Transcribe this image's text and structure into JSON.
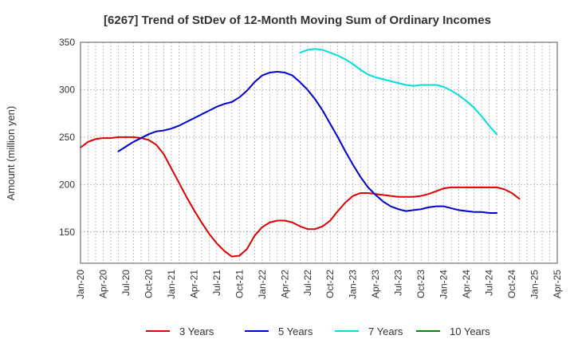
{
  "chart_data": {
    "type": "line",
    "title": "[6267]  Trend of StDev of 12-Month Moving Sum of Ordinary Incomes",
    "xlabel": "",
    "ylabel": "Amount (million yen)",
    "ylim": [
      117,
      350
    ],
    "yticks": [
      150,
      200,
      250,
      300,
      350
    ],
    "x_tick_labels": [
      "Jan-20",
      "Apr-20",
      "Jul-20",
      "Oct-20",
      "Jan-21",
      "Apr-21",
      "Jul-21",
      "Oct-21",
      "Jan-22",
      "Apr-22",
      "Jul-22",
      "Oct-22",
      "Jan-23",
      "Apr-23",
      "Jul-23",
      "Oct-23",
      "Jan-24",
      "Apr-24",
      "Jul-24",
      "Oct-24",
      "Jan-25",
      "Apr-25"
    ],
    "x_unit": "months since Jan-20",
    "series": [
      {
        "name": "3 Years",
        "color": "#dd0000",
        "x": [
          0,
          1,
          2,
          3,
          4,
          5,
          6,
          7,
          8,
          9,
          10,
          11,
          12,
          13,
          14,
          15,
          16,
          17,
          18,
          19,
          20,
          21,
          22,
          23,
          24,
          25,
          26,
          27,
          28,
          29,
          30,
          31,
          32,
          33,
          34,
          35,
          36,
          37,
          38,
          39,
          40,
          41,
          42,
          43,
          44,
          45,
          46,
          47,
          48,
          49,
          50,
          51,
          52,
          53,
          54,
          55,
          56,
          57,
          58,
          59,
          60
        ],
        "values": [
          239,
          245,
          248,
          249,
          249,
          250,
          250,
          250,
          249,
          247,
          242,
          232,
          217,
          202,
          187,
          173,
          160,
          148,
          138,
          130,
          124,
          125,
          132,
          146,
          155,
          160,
          162,
          162,
          160,
          156,
          153,
          153,
          156,
          162,
          172,
          181,
          188,
          191,
          191,
          190,
          189,
          188,
          187,
          187,
          187,
          188,
          190,
          193,
          196,
          197,
          197,
          197,
          197,
          197,
          197,
          197,
          195,
          191,
          185,
          null,
          null
        ],
        "visible_to": 60
      },
      {
        "name": "5 Years",
        "color": "#0000cc",
        "x": [
          5,
          6,
          7,
          8,
          9,
          10,
          11,
          12,
          13,
          14,
          15,
          16,
          17,
          18,
          19,
          20,
          21,
          22,
          23,
          24,
          25,
          26,
          27,
          28,
          29,
          30,
          31,
          32,
          33,
          34,
          35,
          36,
          37,
          38,
          39,
          40,
          41,
          42,
          43,
          44,
          45,
          46,
          47,
          48,
          49,
          50,
          51,
          52,
          53,
          54,
          55,
          56,
          57,
          58,
          59,
          60
        ],
        "values": [
          235,
          240,
          245,
          249,
          253,
          256,
          257,
          259,
          262,
          266,
          270,
          274,
          278,
          282,
          285,
          287,
          292,
          299,
          308,
          315,
          318,
          319,
          318,
          315,
          308,
          300,
          290,
          278,
          264,
          250,
          235,
          221,
          208,
          197,
          189,
          182,
          177,
          174,
          172,
          173,
          174,
          176,
          177,
          177,
          175,
          173,
          172,
          171,
          171,
          170,
          170,
          null,
          null,
          null,
          null,
          null
        ]
      },
      {
        "name": "7 Years",
        "color": "#00dddd",
        "x": [
          29,
          30,
          31,
          32,
          33,
          34,
          35,
          36,
          37,
          38,
          39,
          40,
          41,
          42,
          43,
          44,
          45,
          46,
          47,
          48,
          49,
          50,
          51,
          52,
          53,
          54,
          55,
          56,
          57,
          58,
          59,
          60
        ],
        "values": [
          339,
          342,
          343,
          342,
          339,
          336,
          332,
          327,
          321,
          316,
          313,
          311,
          309,
          307,
          305,
          304,
          305,
          305,
          305,
          303,
          299,
          294,
          288,
          281,
          272,
          262,
          253,
          null,
          null,
          null,
          null,
          null
        ]
      },
      {
        "name": "10 Years",
        "color": "#008800",
        "x": [],
        "values": []
      }
    ],
    "legend": [
      "3 Years",
      "5 Years",
      "7 Years",
      "10 Years"
    ],
    "legend_position": "bottom",
    "grid": true
  }
}
